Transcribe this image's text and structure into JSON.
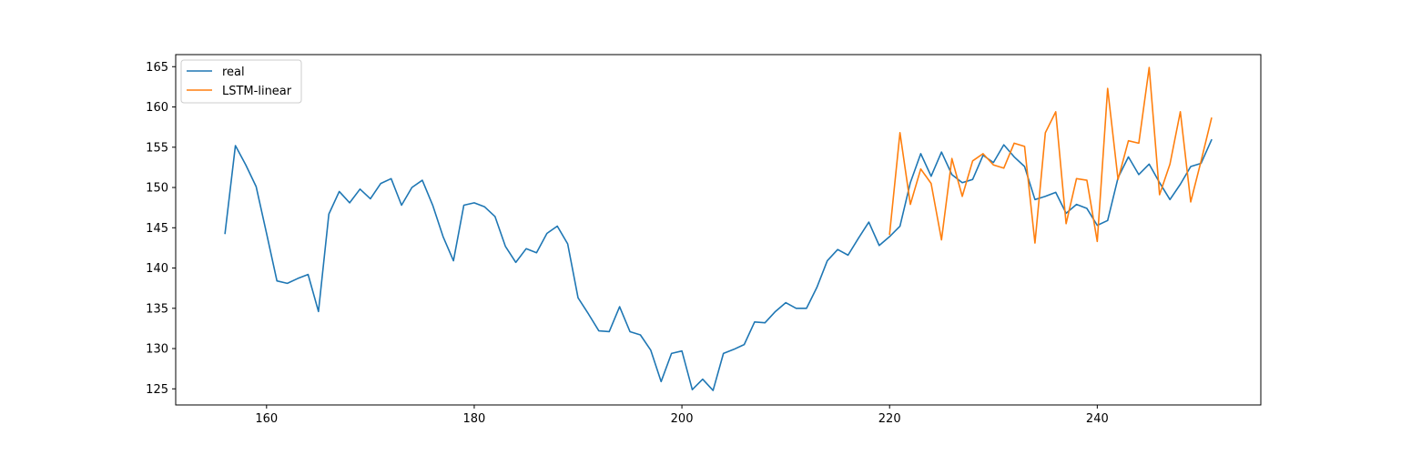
{
  "chart_data": {
    "type": "line",
    "title": "",
    "xlabel": "",
    "ylabel": "",
    "xlim": [
      151.25,
      255.75
    ],
    "ylim": [
      123.0,
      166.5
    ],
    "xticks": [
      160,
      180,
      200,
      220,
      240
    ],
    "yticks": [
      125,
      130,
      135,
      140,
      145,
      150,
      155,
      160,
      165
    ],
    "grid": false,
    "legend_position": "top-left",
    "series": [
      {
        "name": "real",
        "color": "#1f77b4",
        "x": [
          156,
          157,
          158,
          159,
          160,
          161,
          162,
          163,
          164,
          165,
          166,
          167,
          168,
          169,
          170,
          171,
          172,
          173,
          174,
          175,
          176,
          177,
          178,
          179,
          180,
          181,
          182,
          183,
          184,
          185,
          186,
          187,
          188,
          189,
          190,
          191,
          192,
          193,
          194,
          195,
          196,
          197,
          198,
          199,
          200,
          201,
          202,
          203,
          204,
          205,
          206,
          207,
          208,
          209,
          210,
          211,
          212,
          213,
          214,
          215,
          216,
          217,
          218,
          219,
          220,
          221,
          222,
          223,
          224,
          225,
          226,
          227,
          228,
          229,
          230,
          231,
          232,
          233,
          234,
          235,
          236,
          237,
          238,
          239,
          240,
          241,
          242,
          243,
          244,
          245,
          246,
          247,
          248,
          249,
          250,
          251
        ],
        "y": [
          144.3,
          155.2,
          152.8,
          150.1,
          144.3,
          138.4,
          138.1,
          138.7,
          139.2,
          134.6,
          146.7,
          149.5,
          148.1,
          149.8,
          148.6,
          150.5,
          151.1,
          147.8,
          150.0,
          150.9,
          147.8,
          143.9,
          140.9,
          147.8,
          148.1,
          147.6,
          146.4,
          142.7,
          140.7,
          142.4,
          141.9,
          144.3,
          145.2,
          143.0,
          136.3,
          134.3,
          132.2,
          132.1,
          135.2,
          132.1,
          131.7,
          129.8,
          125.9,
          129.4,
          129.7,
          124.9,
          126.2,
          124.8,
          129.4,
          129.9,
          130.5,
          133.3,
          133.2,
          134.6,
          135.7,
          135.0,
          135.0,
          137.6,
          140.9,
          142.3,
          141.6,
          143.7,
          145.7,
          142.8,
          143.9,
          145.2,
          150.6,
          154.2,
          151.4,
          154.4,
          151.6,
          150.6,
          151.0,
          154.0,
          153.1,
          155.3,
          153.8,
          152.6,
          148.5,
          148.9,
          149.4,
          146.8,
          147.9,
          147.4,
          145.3,
          145.9,
          151.2,
          153.8,
          151.6,
          152.9,
          150.6,
          148.5,
          150.4,
          152.6,
          153.0,
          155.9
        ]
      },
      {
        "name": "LSTM-linear",
        "color": "#ff7f0e",
        "x": [
          220,
          221,
          222,
          223,
          224,
          225,
          226,
          227,
          228,
          229,
          230,
          231,
          232,
          233,
          234,
          235,
          236,
          237,
          238,
          239,
          240,
          241,
          242,
          243,
          244,
          245,
          246,
          247,
          248,
          249,
          250,
          251
        ],
        "y": [
          144.2,
          156.8,
          147.9,
          152.3,
          150.5,
          143.5,
          153.6,
          148.9,
          153.3,
          154.2,
          152.8,
          152.4,
          155.5,
          155.1,
          143.1,
          156.8,
          159.4,
          145.5,
          151.1,
          150.9,
          143.3,
          162.3,
          151.0,
          155.8,
          155.5,
          164.9,
          149.1,
          152.9,
          159.4,
          148.2,
          153.3,
          158.6
        ]
      }
    ]
  }
}
